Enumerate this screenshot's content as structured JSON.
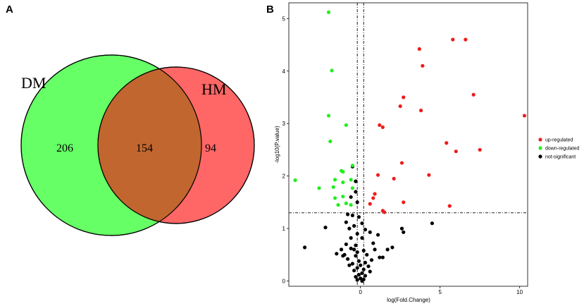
{
  "panels": {
    "a_label": "A",
    "b_label": "B"
  },
  "colors": {
    "dm_fill": "#66ff66",
    "hm_fill": "#ff6666",
    "overlap_fill": "#c1662e",
    "up": "#ee1c1c",
    "down": "#22ee22",
    "ns": "#000000"
  },
  "chart_data": [
    {
      "type": "venn",
      "sets": [
        {
          "name": "DM",
          "only": "206"
        },
        {
          "name": "HM",
          "only": "94"
        }
      ],
      "intersection": "154"
    },
    {
      "type": "scatter",
      "title": "",
      "xlabel": "log(Fold.Change)",
      "ylabel": "-log10(P.value)",
      "xlim": [
        -4.5,
        10.5
      ],
      "ylim": [
        -0.1,
        5.3
      ],
      "xticks": [
        "0",
        "5",
        "10"
      ],
      "yticks": [
        "0",
        "1",
        "2",
        "3",
        "4",
        "5"
      ],
      "thresholds": {
        "x": [
          -0.2,
          0.2
        ],
        "y": 1.3
      },
      "legend": [
        "up-regulated",
        "down-regulated",
        "not-significant"
      ],
      "series": [
        {
          "name": "up-regulated",
          "points": [
            [
              5.8,
              4.6
            ],
            [
              6.6,
              4.6
            ],
            [
              3.7,
              4.42
            ],
            [
              3.9,
              4.1
            ],
            [
              7.1,
              3.55
            ],
            [
              2.7,
              3.5
            ],
            [
              2.5,
              3.33
            ],
            [
              3.8,
              3.25
            ],
            [
              10.3,
              3.15
            ],
            [
              1.2,
              2.97
            ],
            [
              1.4,
              2.93
            ],
            [
              5.4,
              2.63
            ],
            [
              7.5,
              2.5
            ],
            [
              6.0,
              2.47
            ],
            [
              2.6,
              2.25
            ],
            [
              1.1,
              2.02
            ],
            [
              4.3,
              2.02
            ],
            [
              2.1,
              1.95
            ],
            [
              0.9,
              1.66
            ],
            [
              0.8,
              1.58
            ],
            [
              0.6,
              1.47
            ],
            [
              2.7,
              1.5
            ],
            [
              5.6,
              1.43
            ],
            [
              1.4,
              1.34
            ],
            [
              1.5,
              1.31
            ]
          ]
        },
        {
          "name": "down-regulated",
          "points": [
            [
              -2.0,
              5.12
            ],
            [
              -1.8,
              4.01
            ],
            [
              -2.0,
              3.15
            ],
            [
              -0.9,
              2.97
            ],
            [
              -1.9,
              2.66
            ],
            [
              -0.5,
              2.2
            ],
            [
              -1.2,
              2.1
            ],
            [
              -1.1,
              2.08
            ],
            [
              -0.6,
              1.93
            ],
            [
              -4.1,
              1.92
            ],
            [
              -1.6,
              1.93
            ],
            [
              -1.1,
              1.88
            ],
            [
              -1.7,
              1.79
            ],
            [
              -2.6,
              1.77
            ],
            [
              -0.5,
              1.77
            ],
            [
              -1.1,
              1.61
            ],
            [
              -1.6,
              1.58
            ],
            [
              -0.9,
              1.48
            ],
            [
              -1.4,
              1.45
            ],
            [
              -0.6,
              1.45
            ]
          ]
        },
        {
          "name": "not-significant",
          "points": [
            [
              -0.5,
              2.18
            ],
            [
              -0.3,
              1.9
            ],
            [
              -0.3,
              1.7
            ],
            [
              -0.6,
              1.6
            ],
            [
              -0.2,
              1.5
            ],
            [
              -0.8,
              1.27
            ],
            [
              -0.5,
              1.25
            ],
            [
              -0.1,
              1.22
            ],
            [
              -0.9,
              1.12
            ],
            [
              0.1,
              1.1
            ],
            [
              -0.4,
              1.05
            ],
            [
              -2.2,
              1.02
            ],
            [
              -0.7,
              1.0
            ],
            [
              0.3,
              0.98
            ],
            [
              4.5,
              1.1
            ],
            [
              2.6,
              1.0
            ],
            [
              2.7,
              0.93
            ],
            [
              -0.2,
              0.9
            ],
            [
              0.6,
              0.93
            ],
            [
              1.1,
              0.88
            ],
            [
              -0.6,
              0.82
            ],
            [
              0.1,
              0.82
            ],
            [
              0.8,
              0.72
            ],
            [
              -0.9,
              0.7
            ],
            [
              -0.3,
              0.68
            ],
            [
              0.9,
              0.6
            ],
            [
              0.2,
              0.58
            ],
            [
              -0.6,
              0.62
            ],
            [
              -0.4,
              0.6
            ],
            [
              -0.2,
              0.55
            ],
            [
              1.7,
              0.6
            ],
            [
              2.0,
              0.64
            ],
            [
              -3.5,
              0.64
            ],
            [
              -1.2,
              0.6
            ],
            [
              -1.0,
              0.5
            ],
            [
              -0.3,
              0.48
            ],
            [
              0.4,
              0.5
            ],
            [
              1.2,
              0.45
            ],
            [
              -0.8,
              0.42
            ],
            [
              -0.1,
              0.38
            ],
            [
              0.3,
              0.35
            ],
            [
              -0.5,
              0.33
            ],
            [
              0.0,
              0.3
            ],
            [
              -0.2,
              0.25
            ],
            [
              0.2,
              0.22
            ],
            [
              -0.4,
              0.2
            ],
            [
              0.1,
              0.15
            ],
            [
              -0.1,
              0.12
            ],
            [
              0.3,
              0.1
            ],
            [
              -0.3,
              0.08
            ],
            [
              0.0,
              0.05
            ],
            [
              0.2,
              0.03
            ],
            [
              -0.2,
              0.02
            ],
            [
              0.1,
              0.0
            ],
            [
              -1.1,
              0.48
            ],
            [
              -0.7,
              0.3
            ],
            [
              0.5,
              0.28
            ],
            [
              0.7,
              0.4
            ],
            [
              1.4,
              0.45
            ],
            [
              -1.5,
              0.52
            ],
            [
              0.6,
              0.18
            ]
          ]
        }
      ]
    }
  ]
}
